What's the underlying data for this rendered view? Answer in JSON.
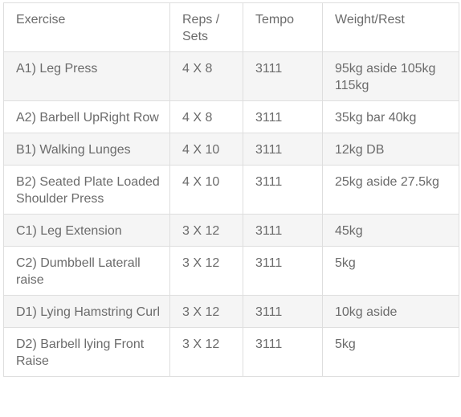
{
  "table": {
    "headers": [
      "Exercise",
      "Reps / Sets",
      "Tempo",
      "Weight/Rest"
    ],
    "rows": [
      {
        "exercise": "A1) Leg Press",
        "reps_sets": "4 X 8",
        "tempo": "3111",
        "weight_rest": "95kg aside 105kg 115kg"
      },
      {
        "exercise": "A2) Barbell UpRight Row",
        "reps_sets": "4 X 8",
        "tempo": "3111",
        "weight_rest": "35kg bar 40kg"
      },
      {
        "exercise": "B1) Walking Lunges",
        "reps_sets": "4 X 10",
        "tempo": "3111",
        "weight_rest": "12kg DB"
      },
      {
        "exercise": "B2) Seated Plate Loaded Shoulder Press",
        "reps_sets": "4 X 10",
        "tempo": "3111",
        "weight_rest": "25kg aside 27.5kg"
      },
      {
        "exercise": "C1) Leg Extension",
        "reps_sets": "3 X 12",
        "tempo": "3111",
        "weight_rest": "45kg"
      },
      {
        "exercise": "C2) Dumbbell Laterall raise",
        "reps_sets": "3 X 12",
        "tempo": "3111",
        "weight_rest": "5kg"
      },
      {
        "exercise": "D1) Lying Hamstring Curl",
        "reps_sets": "3 X 12",
        "tempo": "3111",
        "weight_rest": "10kg aside"
      },
      {
        "exercise": "D2) Barbell lying Front Raise",
        "reps_sets": "3 X 12",
        "tempo": "3111",
        "weight_rest": "5kg"
      }
    ]
  },
  "colors": {
    "text": "#6b6b6b",
    "border": "#dedede",
    "stripe": "#f5f5f5",
    "background": "#ffffff"
  }
}
